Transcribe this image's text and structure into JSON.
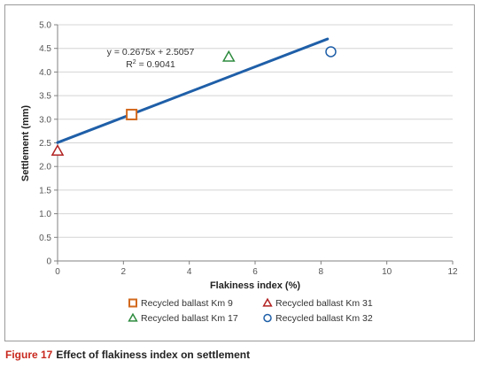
{
  "chart_data": {
    "type": "scatter",
    "xlabel": "Flakiness index (%)",
    "ylabel": "Settlement (mm)",
    "xlim": [
      0,
      12
    ],
    "ylim": [
      0,
      5
    ],
    "x_ticks": [
      "0",
      "2",
      "4",
      "6",
      "8",
      "10",
      "12"
    ],
    "y_ticks": [
      "0",
      "0.5",
      "1.0",
      "1.5",
      "2.0",
      "2.5",
      "3.0",
      "3.5",
      "4.0",
      "4.5",
      "5.0"
    ],
    "grid": "horizontal",
    "legend_placement": "bottom",
    "series": [
      {
        "name": "Recycled ballast Km 9",
        "marker": "square",
        "color": "#d2691e",
        "x": 2.25,
        "y": 3.1
      },
      {
        "name": "Recycled ballast Km 31",
        "marker": "triangle",
        "color": "#b22222",
        "x": 0.0,
        "y": 2.33
      },
      {
        "name": "Recycled ballast Km 17",
        "marker": "triangle",
        "color": "#2e8b3e",
        "x": 5.2,
        "y": 4.32
      },
      {
        "name": "Recycled ballast Km 32",
        "marker": "circle",
        "color": "#1f5fa8",
        "x": 8.3,
        "y": 4.43
      }
    ],
    "trendline": {
      "color": "#1f5fa8",
      "x_start": 0,
      "x_end": 8.2,
      "slope": 0.2675,
      "intercept": 2.5057,
      "equation": "y = 0.2675x + 2.5057",
      "r2_label": "R",
      "r2_sup": "2",
      "r2_value": " = 0.9041"
    }
  },
  "caption": {
    "label": "Figure 17",
    "text": "Effect of flakiness index on settlement"
  }
}
